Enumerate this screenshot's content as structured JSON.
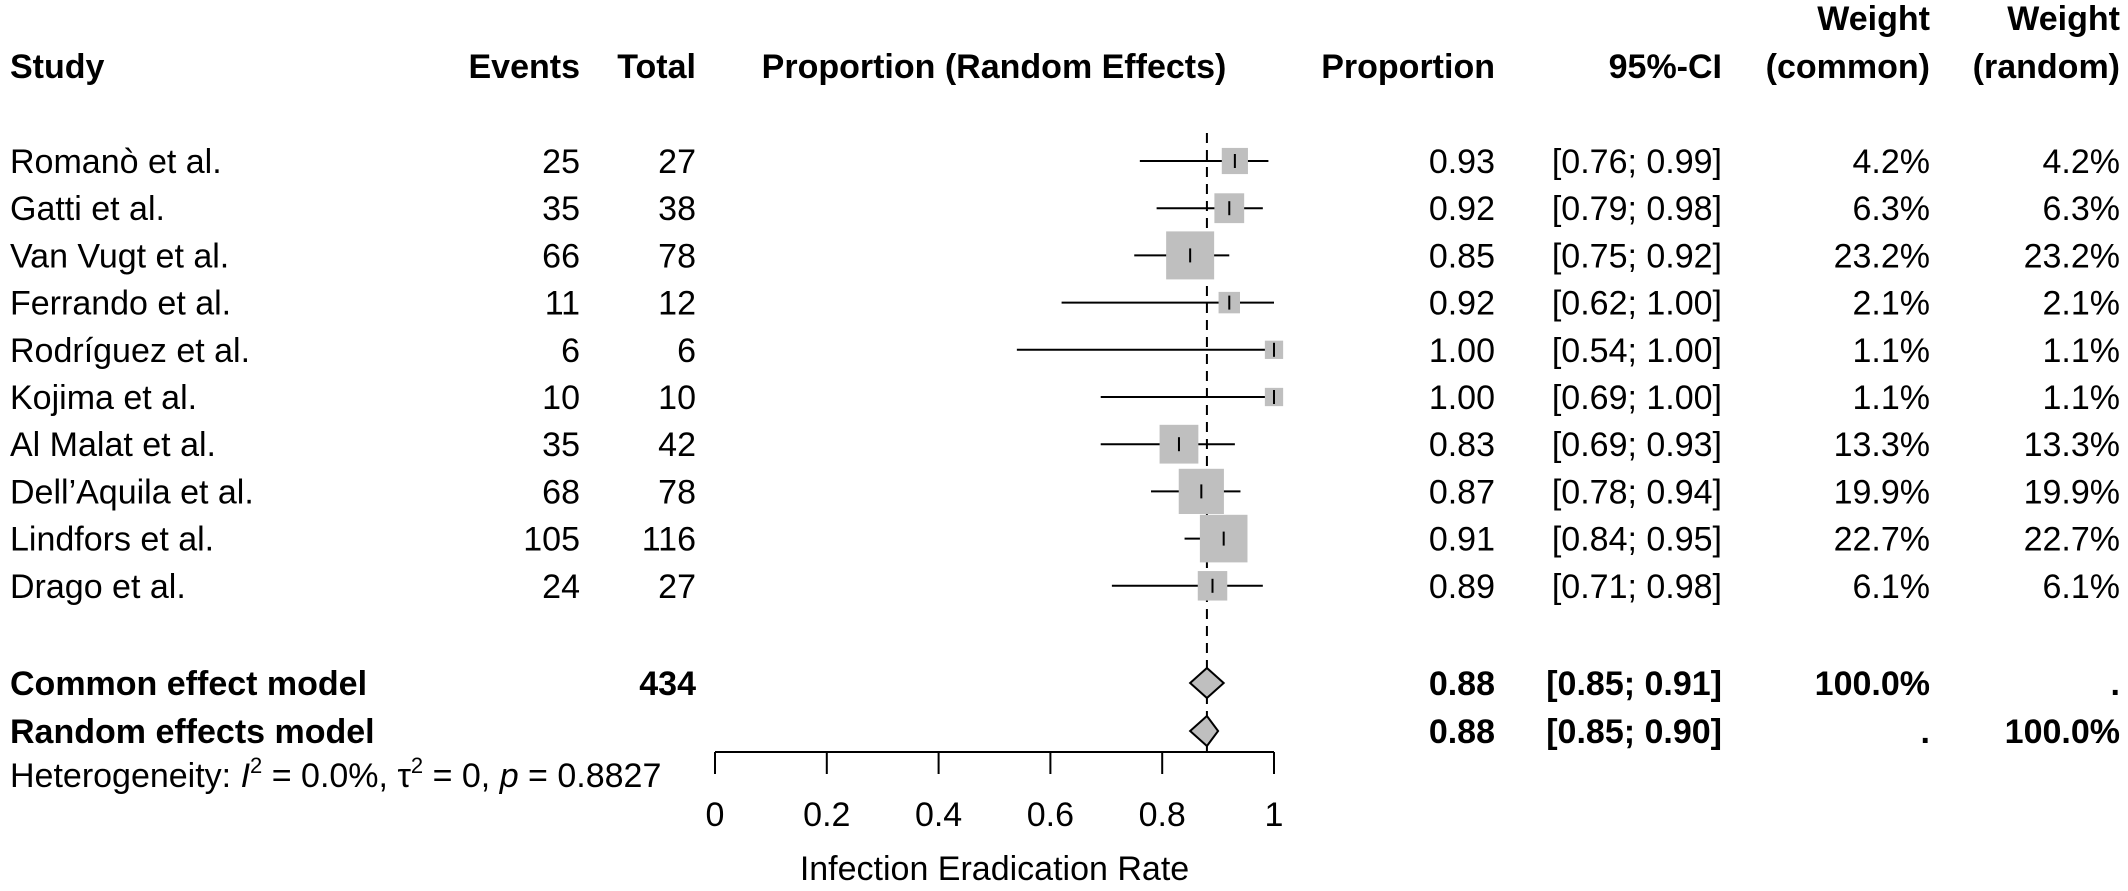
{
  "headers": {
    "study": "Study",
    "events": "Events",
    "total": "Total",
    "plot": "Proportion (Random Effects)",
    "proportion": "Proportion",
    "ci": "95%-CI",
    "weight_common_line1": "Weight",
    "weight_common_line2": "(common)",
    "weight_random_line1": "Weight",
    "weight_random_line2": "(random)"
  },
  "studies": [
    {
      "name": "Romanò et al.",
      "events": "25",
      "total": "27",
      "prop": "0.93",
      "ci": "[0.76; 0.99]",
      "w_common": "4.2%",
      "w_random": "4.2%"
    },
    {
      "name": "Gatti et al.",
      "events": "35",
      "total": "38",
      "prop": "0.92",
      "ci": "[0.79; 0.98]",
      "w_common": "6.3%",
      "w_random": "6.3%"
    },
    {
      "name": "Van Vugt et al.",
      "events": "66",
      "total": "78",
      "prop": "0.85",
      "ci": "[0.75; 0.92]",
      "w_common": "23.2%",
      "w_random": "23.2%"
    },
    {
      "name": "Ferrando et al.",
      "events": "11",
      "total": "12",
      "prop": "0.92",
      "ci": "[0.62; 1.00]",
      "w_common": "2.1%",
      "w_random": "2.1%"
    },
    {
      "name": "Rodríguez et al.",
      "events": "6",
      "total": "6",
      "prop": "1.00",
      "ci": "[0.54; 1.00]",
      "w_common": "1.1%",
      "w_random": "1.1%"
    },
    {
      "name": "Kojima et al.",
      "events": "10",
      "total": "10",
      "prop": "1.00",
      "ci": "[0.69; 1.00]",
      "w_common": "1.1%",
      "w_random": "1.1%"
    },
    {
      "name": "Al Malat et al.",
      "events": "35",
      "total": "42",
      "prop": "0.83",
      "ci": "[0.69; 0.93]",
      "w_common": "13.3%",
      "w_random": "13.3%"
    },
    {
      "name": "Dell’Aquila et al.",
      "events": "68",
      "total": "78",
      "prop": "0.87",
      "ci": "[0.78; 0.94]",
      "w_common": "19.9%",
      "w_random": "19.9%"
    },
    {
      "name": "Lindfors et al.",
      "events": "105",
      "total": "116",
      "prop": "0.91",
      "ci": "[0.84; 0.95]",
      "w_common": "22.7%",
      "w_random": "22.7%"
    },
    {
      "name": "Drago et al.",
      "events": "24",
      "total": "27",
      "prop": "0.89",
      "ci": "[0.71; 0.98]",
      "w_common": "6.1%",
      "w_random": "6.1%"
    }
  ],
  "summaries": [
    {
      "name": "Common effect model",
      "total": "434",
      "prop": "0.88",
      "ci": "[0.85; 0.91]",
      "w_common": "100.0%",
      "w_random": "."
    },
    {
      "name": "Random effects model",
      "total": "",
      "prop": "0.88",
      "ci": "[0.85; 0.90]",
      "w_common": ".",
      "w_random": "100.0%"
    }
  ],
  "heterogeneity": {
    "prefix": "Heterogeneity: ",
    "i2_symbol": "I",
    "i2_value": " = 0.0%, ",
    "tau_symbol": "τ",
    "tau_value": " = 0, ",
    "p_symbol": "p",
    "p_value": " = 0.8827",
    "sup": "2"
  },
  "colors": {
    "box_fill": "#bfbfbf",
    "diamond_fill": "#bfbfbf",
    "line": "#000000"
  },
  "chart_data": {
    "type": "forest",
    "xlabel": "Infection Eradication Rate",
    "xlim": [
      0,
      1
    ],
    "ticks": [
      0,
      0.2,
      0.4,
      0.6,
      0.8,
      1
    ],
    "tick_labels": [
      "0",
      "0.2",
      "0.4",
      "0.6",
      "0.8",
      "1"
    ],
    "reference_line": 0.88,
    "studies": [
      {
        "name": "Romanò et al.",
        "estimate": 0.93,
        "lower": 0.76,
        "upper": 0.99,
        "weight": 4.2
      },
      {
        "name": "Gatti et al.",
        "estimate": 0.92,
        "lower": 0.79,
        "upper": 0.98,
        "weight": 6.3
      },
      {
        "name": "Van Vugt et al.",
        "estimate": 0.85,
        "lower": 0.75,
        "upper": 0.92,
        "weight": 23.2
      },
      {
        "name": "Ferrando et al.",
        "estimate": 0.92,
        "lower": 0.62,
        "upper": 1.0,
        "weight": 2.1
      },
      {
        "name": "Rodríguez et al.",
        "estimate": 1.0,
        "lower": 0.54,
        "upper": 1.0,
        "weight": 1.1
      },
      {
        "name": "Kojima et al.",
        "estimate": 1.0,
        "lower": 0.69,
        "upper": 1.0,
        "weight": 1.1
      },
      {
        "name": "Al Malat et al.",
        "estimate": 0.83,
        "lower": 0.69,
        "upper": 0.93,
        "weight": 13.3
      },
      {
        "name": "Dell’Aquila et al.",
        "estimate": 0.87,
        "lower": 0.78,
        "upper": 0.94,
        "weight": 19.9
      },
      {
        "name": "Lindfors et al.",
        "estimate": 0.91,
        "lower": 0.84,
        "upper": 0.95,
        "weight": 22.7
      },
      {
        "name": "Drago et al.",
        "estimate": 0.89,
        "lower": 0.71,
        "upper": 0.98,
        "weight": 6.1
      }
    ],
    "summaries": [
      {
        "name": "Common effect model",
        "estimate": 0.88,
        "lower": 0.85,
        "upper": 0.91
      },
      {
        "name": "Random effects model",
        "estimate": 0.88,
        "lower": 0.85,
        "upper": 0.9
      }
    ]
  }
}
